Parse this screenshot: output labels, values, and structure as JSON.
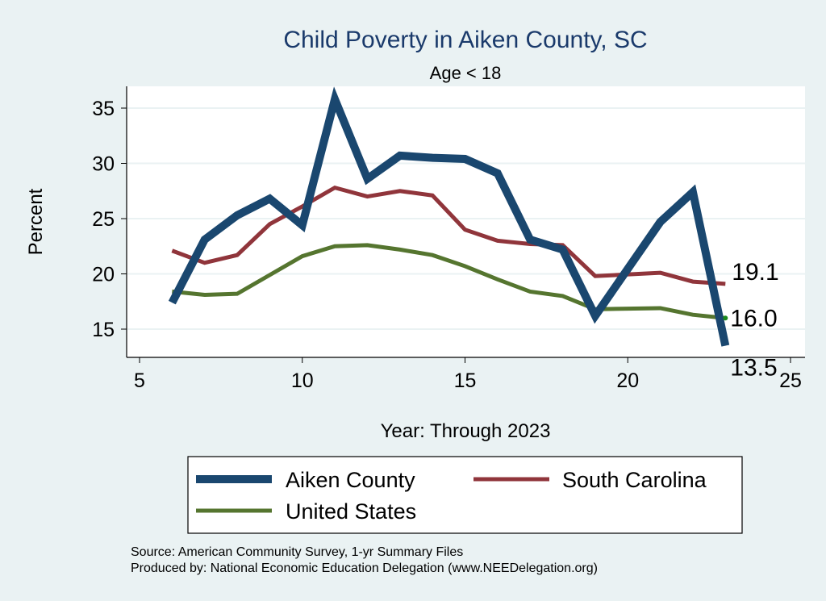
{
  "chart_data": {
    "type": "line",
    "title": "Child Poverty in Aiken County, SC",
    "subtitle": "Age < 18",
    "xlabel": "Year: Through 2023",
    "ylabel": "Percent",
    "xlim": [
      5,
      25
    ],
    "ylim": [
      12.5,
      37.2
    ],
    "xticks": [
      "5",
      "10",
      "15",
      "20",
      "25"
    ],
    "yticks": [
      "15",
      "20",
      "25",
      "30",
      "35"
    ],
    "grid": true,
    "legend_position": "bottom",
    "series": [
      {
        "name": "Aiken County",
        "color": "#1a476f",
        "x": [
          6,
          7,
          8,
          9,
          10,
          11,
          12,
          13,
          14,
          15,
          16,
          17,
          18,
          19,
          21,
          22,
          23
        ],
        "values": [
          17.4,
          23.1,
          25.3,
          26.8,
          24.4,
          35.8,
          28.6,
          30.7,
          30.5,
          30.4,
          29.1,
          23.1,
          22.2,
          16.2,
          24.7,
          27.4,
          13.5
        ]
      },
      {
        "name": "South Carolina",
        "color": "#90353b",
        "x": [
          6,
          7,
          8,
          9,
          10,
          11,
          12,
          13,
          14,
          15,
          16,
          17,
          18,
          19,
          21,
          22,
          23
        ],
        "values": [
          22.1,
          21.0,
          21.7,
          24.5,
          26.1,
          27.8,
          27.0,
          27.5,
          27.1,
          24.0,
          23.0,
          22.7,
          22.6,
          19.8,
          20.1,
          19.3,
          19.1
        ]
      },
      {
        "name": "United States",
        "color": "#55752f",
        "x": [
          6,
          7,
          8,
          9,
          10,
          11,
          12,
          13,
          14,
          15,
          16,
          17,
          18,
          19,
          21,
          22,
          23
        ],
        "values": [
          18.4,
          18.1,
          18.2,
          19.9,
          21.6,
          22.5,
          22.6,
          22.2,
          21.7,
          20.7,
          19.5,
          18.4,
          18.0,
          16.8,
          16.9,
          16.3,
          16.0
        ]
      }
    ],
    "end_labels": [
      {
        "series": "South Carolina",
        "text": "19.1"
      },
      {
        "series": "United States",
        "text": "16.0"
      },
      {
        "series": "Aiken County",
        "text": "13.5"
      }
    ]
  },
  "notes": {
    "source": "Source: American Community Survey, 1-yr Summary Files",
    "produced": "Produced by: National Economic Education Delegation (www.NEEDelegation.org)"
  }
}
